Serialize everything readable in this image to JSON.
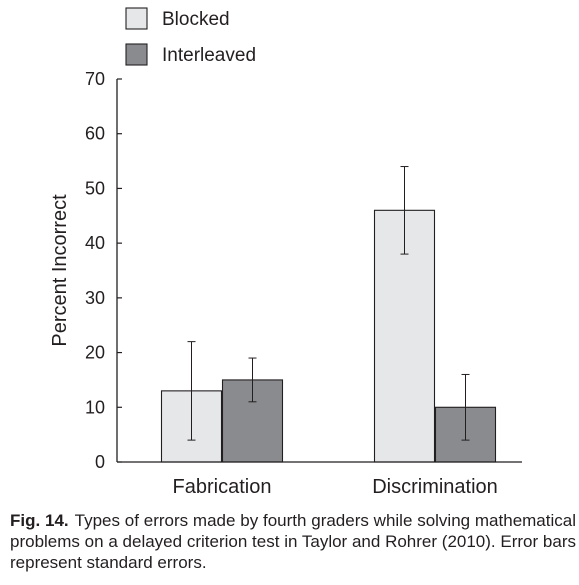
{
  "chart_data": {
    "type": "bar",
    "categories": [
      "Fabrication",
      "Discrimination"
    ],
    "series": [
      {
        "name": "Blocked",
        "color": "#e6e7e8",
        "values": [
          13,
          46
        ],
        "error": [
          9,
          8
        ]
      },
      {
        "name": "Interleaved",
        "color": "#8a8b8e",
        "values": [
          15,
          10
        ],
        "error": [
          4,
          6
        ]
      }
    ],
    "ylabel": "Percent Incorrect",
    "xlabel": "",
    "ylim": [
      0,
      70
    ],
    "yticks": [
      0,
      10,
      20,
      30,
      40,
      50,
      60,
      70
    ],
    "legend_position": "top-left",
    "grid": false
  },
  "caption": {
    "label": "Fig. 14.",
    "text": "Types of errors made by fourth graders while solving mathematical problems on a delayed criterion test in Taylor and Rohrer (2010). Error bars represent standard errors."
  }
}
